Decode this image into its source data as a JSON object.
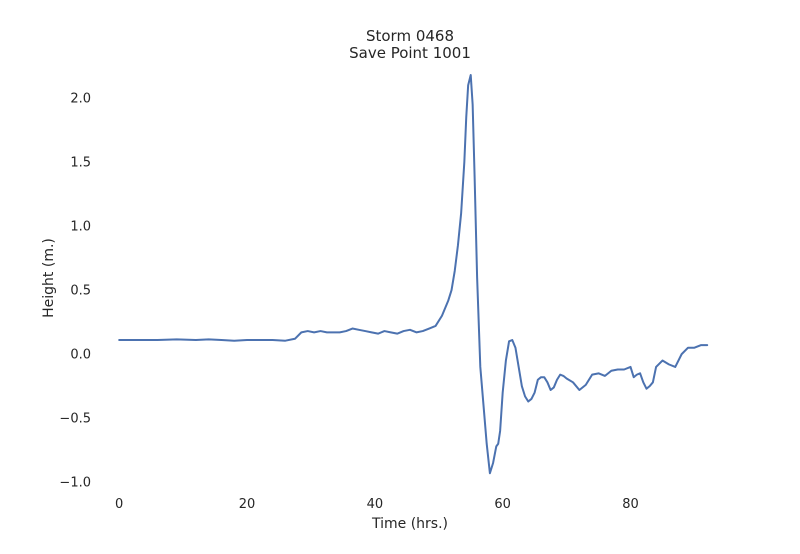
{
  "chart_data": {
    "type": "line",
    "title": [
      "Storm 0468",
      "Save Point 1001"
    ],
    "xlabel": "Time (hrs.)",
    "ylabel": "Height (m.)",
    "xlim": [
      -3,
      94
    ],
    "ylim": [
      -1.1,
      2.25
    ],
    "xticks": [
      0,
      20,
      40,
      60,
      80
    ],
    "yticks": [
      -1.0,
      -0.5,
      0.0,
      0.5,
      1.0,
      1.5,
      2.0
    ],
    "ytick_labels": [
      "−1.0",
      "−0.5",
      "0.0",
      "0.5",
      "1.0",
      "1.5",
      "2.0"
    ],
    "grid": false,
    "line_color": "#4c72b0",
    "series": [
      {
        "x": [
          0,
          3,
          6,
          9,
          12,
          14,
          16,
          18,
          20,
          22,
          24,
          26,
          27.5,
          28.5,
          29.5,
          30.5,
          31.5,
          32.5,
          33.5,
          34.5,
          35.5,
          36.5,
          37.5,
          38.5,
          39.5,
          40.5,
          41.5,
          42.5,
          43.5,
          44.5,
          45.5,
          46.5,
          47.5,
          48.5,
          49.5,
          50.5,
          51.5,
          52,
          52.5,
          53,
          53.5,
          54,
          54.3,
          54.6,
          55,
          55.3,
          55.6,
          56,
          56.5,
          57,
          57.5,
          58,
          58.5,
          59,
          59.3,
          59.6,
          60,
          60.5,
          61,
          61.5,
          62,
          62.5,
          63,
          63.5,
          64,
          64.5,
          65,
          65.5,
          66,
          66.5,
          67,
          67.5,
          68,
          68.5,
          69,
          69.5,
          70,
          71,
          72,
          73,
          74,
          75,
          76,
          77,
          78,
          79,
          80,
          80.5,
          81,
          81.5,
          82,
          82.5,
          83,
          83.5,
          84,
          85,
          86,
          87,
          88,
          89,
          90,
          91,
          92
        ],
        "y": [
          0.11,
          0.11,
          0.11,
          0.115,
          0.11,
          0.115,
          0.11,
          0.105,
          0.11,
          0.11,
          0.11,
          0.105,
          0.12,
          0.17,
          0.18,
          0.17,
          0.18,
          0.17,
          0.17,
          0.17,
          0.18,
          0.2,
          0.19,
          0.18,
          0.17,
          0.16,
          0.18,
          0.17,
          0.16,
          0.18,
          0.19,
          0.17,
          0.18,
          0.2,
          0.22,
          0.3,
          0.42,
          0.5,
          0.65,
          0.85,
          1.1,
          1.5,
          1.85,
          2.1,
          2.18,
          1.95,
          1.4,
          0.6,
          -0.1,
          -0.4,
          -0.7,
          -0.93,
          -0.85,
          -0.72,
          -0.7,
          -0.6,
          -0.3,
          -0.05,
          0.1,
          0.11,
          0.05,
          -0.1,
          -0.25,
          -0.33,
          -0.37,
          -0.35,
          -0.3,
          -0.2,
          -0.18,
          -0.18,
          -0.22,
          -0.28,
          -0.26,
          -0.2,
          -0.16,
          -0.17,
          -0.19,
          -0.22,
          -0.28,
          -0.24,
          -0.16,
          -0.15,
          -0.17,
          -0.13,
          -0.12,
          -0.12,
          -0.1,
          -0.18,
          -0.16,
          -0.15,
          -0.22,
          -0.27,
          -0.25,
          -0.22,
          -0.1,
          -0.05,
          -0.08,
          -0.1,
          0.0,
          0.05,
          0.05,
          0.07,
          0.07
        ]
      }
    ]
  }
}
